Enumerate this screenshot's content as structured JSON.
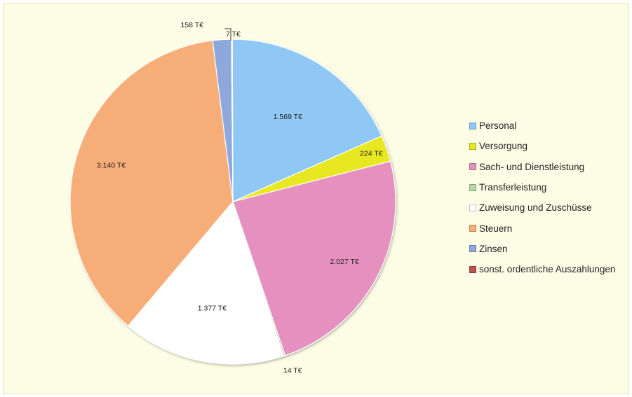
{
  "chart_data": {
    "type": "pie",
    "unit": "T€",
    "slices": [
      {
        "name": "Personal",
        "value": 1569,
        "label": "1.569 T€",
        "color": "#8fc8f4"
      },
      {
        "name": "Versorgung",
        "value": 224,
        "label": "224 T€",
        "color": "#e8e820"
      },
      {
        "name": "Sach- und Dienstleistung",
        "value": 2027,
        "label": "2.027 T€",
        "color": "#e690bf"
      },
      {
        "name": "Transferleistung",
        "value": 14,
        "label": "14 T€",
        "color": "#b7d7a8"
      },
      {
        "name": "Zuweisung und Zuschüsse",
        "value": 1377,
        "label": "1.377 T€",
        "color": "#ffffff"
      },
      {
        "name": "Steuern",
        "value": 3140,
        "label": "3.140 T€",
        "color": "#f7ad77"
      },
      {
        "name": "Zinsen",
        "value": 158,
        "label": "158 T€",
        "color": "#8ea8dc"
      },
      {
        "name": "sonst. ordentliche Auszahlungen",
        "value": 7,
        "label": "7 T€",
        "color": "#c0504d"
      }
    ],
    "legend_position": "right"
  }
}
